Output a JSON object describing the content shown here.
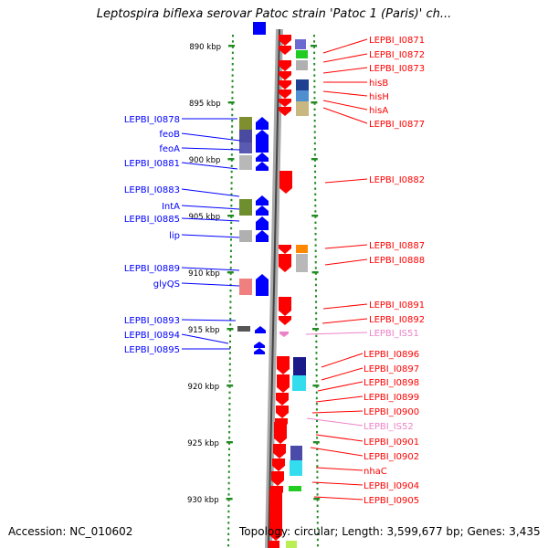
{
  "title": "Leptospira biflexa serovar Patoc strain 'Patoc 1 (Paris)' ch...",
  "footer": {
    "accession": "Accession: NC_010602",
    "topology": "Topology: circular; Length: 3,599,677 bp; Genes: 3,435"
  },
  "colors": {
    "forward_strand": "#0000ff",
    "reverse_strand": "#ff0000",
    "mobile_element": "#ee82c8",
    "ticks": "#228b22",
    "backbone": "#999999"
  },
  "kbp_axis": [
    {
      "kbp": 890,
      "label": "890 kbp"
    },
    {
      "kbp": 895,
      "label": "895 kbp"
    },
    {
      "kbp": 900,
      "label": "900 kbp"
    },
    {
      "kbp": 905,
      "label": "905 kbp"
    },
    {
      "kbp": 910,
      "label": "910 kbp"
    },
    {
      "kbp": 915,
      "label": "915 kbp"
    },
    {
      "kbp": 920,
      "label": "920 kbp"
    },
    {
      "kbp": 925,
      "label": "925 kbp"
    },
    {
      "kbp": 930,
      "label": "930 kbp"
    }
  ],
  "left_labels": [
    "LEPBI_I0878",
    "feoB",
    "feoA",
    "LEPBI_I0881",
    "LEPBI_I0883",
    "IntA",
    "LEPBI_I0885",
    "lip",
    "LEPBI_I0889",
    "glyQS",
    "LEPBI_I0893",
    "LEPBI_I0894",
    "LEPBI_I0895"
  ],
  "right_labels": [
    "LEPBI_I0871",
    "LEPBI_I0872",
    "LEPBI_I0873",
    "hisB",
    "hisH",
    "hisA",
    "LEPBI_I0877",
    "LEPBI_I0882",
    "LEPBI_I0887",
    "LEPBI_I0888",
    "LEPBI_I0891",
    "LEPBI_I0892",
    "LEPBI_IS51",
    "LEPBI_I0896",
    "LEPBI_I0897",
    "LEPBI_I0898",
    "LEPBI_I0899",
    "LEPBI_I0900",
    "LEPBI_IS52",
    "LEPBI_I0901",
    "LEPBI_I0902",
    "nhaC",
    "LEPBI_I0904",
    "LEPBI_I0905"
  ]
}
